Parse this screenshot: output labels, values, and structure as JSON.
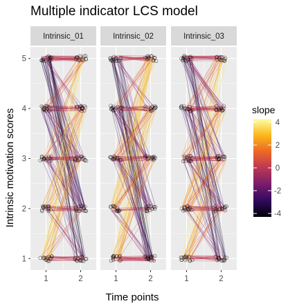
{
  "chart_data": {
    "type": "line",
    "title": "Multiple indicator LCS model",
    "xlabel": "Time points",
    "ylabel": "Intrinsic motivation scores",
    "facets": [
      "Intrinsic_01",
      "Intrinsic_02",
      "Intrinsic_03"
    ],
    "x_ticks": [
      "1",
      "2"
    ],
    "y_ticks": [
      "1",
      "2",
      "3",
      "4",
      "5"
    ],
    "xlim": [
      0.55,
      2.45
    ],
    "ylim": [
      0.77,
      5.23
    ],
    "legend": {
      "title": "slope",
      "position": "right",
      "ticks": [
        "4",
        "2",
        "0",
        "-2",
        "-4"
      ],
      "range": [
        -4.3,
        4.3
      ]
    },
    "colors": {
      "panel_bg": "#ebebeb",
      "strip_bg": "#d9d9d9",
      "grid": "#ffffff",
      "palette_inferno": [
        "#000004",
        "#320a5e",
        "#781c6d",
        "#bc3754",
        "#ed6925",
        "#fbb61a",
        "#fcffa4"
      ]
    },
    "grid": true
  }
}
